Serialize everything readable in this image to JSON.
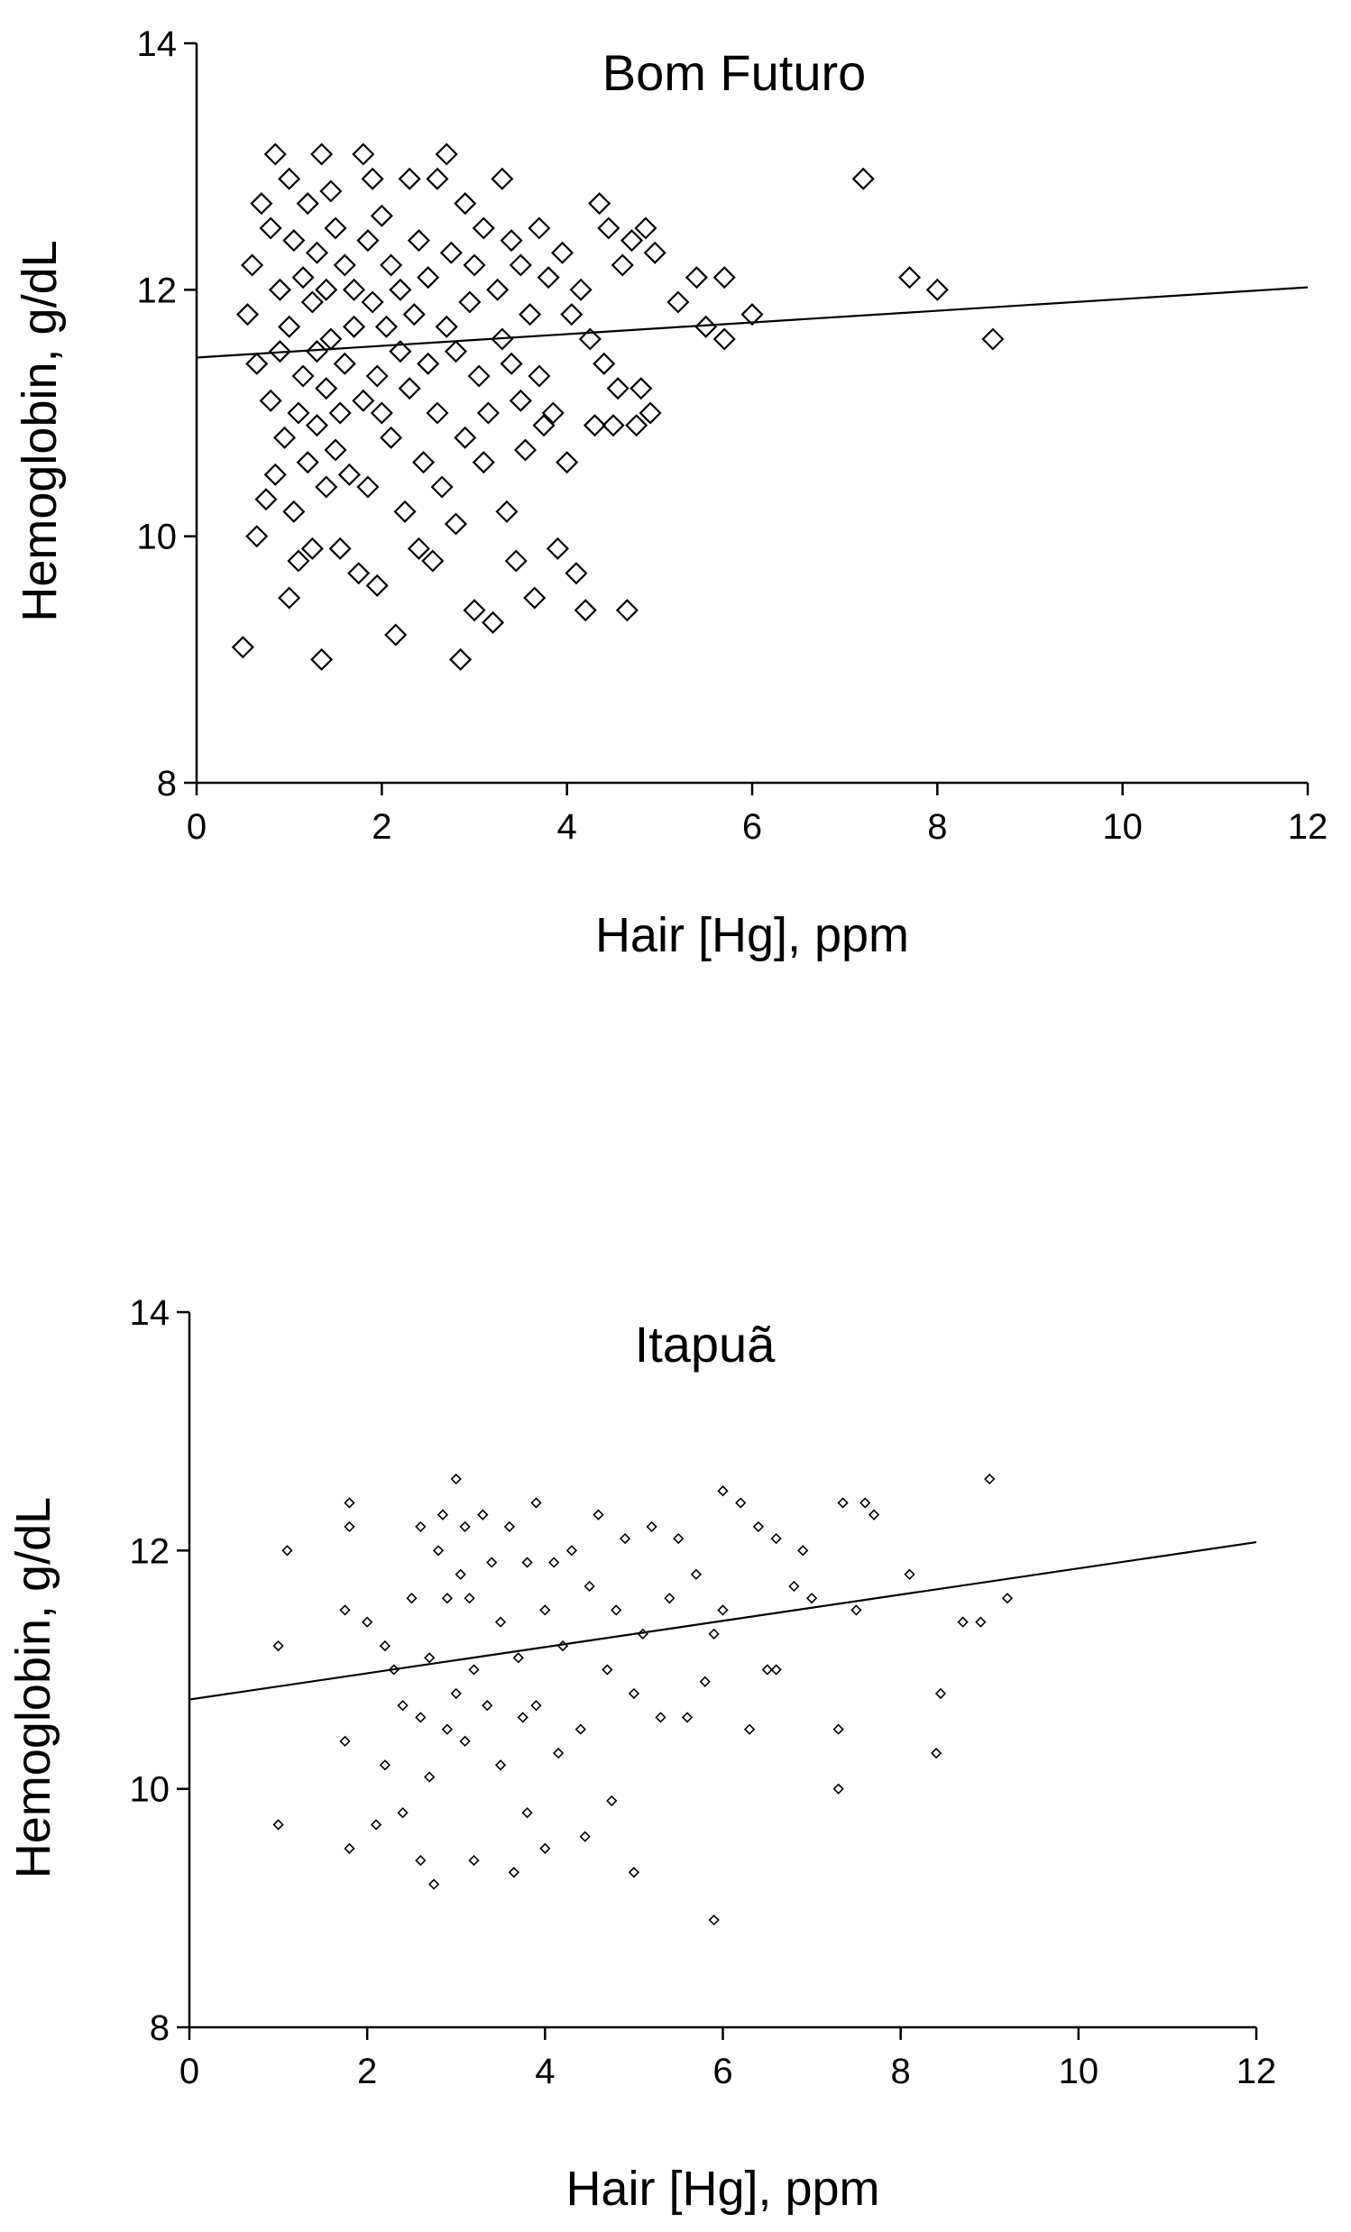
{
  "chart_data": [
    {
      "type": "scatter",
      "title": "Bom Futuro",
      "xlabel": "Hair [Hg], ppm",
      "ylabel": "Hemoglobin, g/dL",
      "xlim": [
        0,
        12
      ],
      "ylim": [
        8,
        14
      ],
      "xticks": [
        "0",
        "2",
        "4",
        "6",
        "8",
        "10",
        "12"
      ],
      "yticks": [
        "8",
        "10",
        "12",
        "14"
      ],
      "grid": false,
      "legend": "none",
      "marker": "open-diamond",
      "marker_size": "large",
      "trend_line": {
        "x": [
          0,
          12
        ],
        "y": [
          11.45,
          12.02
        ]
      },
      "points": [
        [
          0.5,
          9.1
        ],
        [
          0.55,
          11.8
        ],
        [
          0.6,
          12.2
        ],
        [
          0.65,
          11.4
        ],
        [
          0.65,
          10.0
        ],
        [
          0.7,
          12.7
        ],
        [
          0.75,
          10.3
        ],
        [
          0.8,
          11.1
        ],
        [
          0.8,
          12.5
        ],
        [
          0.85,
          13.1
        ],
        [
          0.85,
          10.5
        ],
        [
          0.9,
          11.5
        ],
        [
          0.9,
          12.0
        ],
        [
          0.95,
          10.8
        ],
        [
          1.0,
          12.9
        ],
        [
          1.0,
          11.7
        ],
        [
          1.0,
          9.5
        ],
        [
          1.05,
          10.2
        ],
        [
          1.05,
          12.4
        ],
        [
          1.1,
          11.0
        ],
        [
          1.1,
          9.8
        ],
        [
          1.15,
          12.1
        ],
        [
          1.15,
          11.3
        ],
        [
          1.2,
          10.6
        ],
        [
          1.2,
          12.7
        ],
        [
          1.25,
          11.9
        ],
        [
          1.25,
          9.9
        ],
        [
          1.3,
          11.5
        ],
        [
          1.3,
          12.3
        ],
        [
          1.3,
          10.9
        ],
        [
          1.35,
          13.1
        ],
        [
          1.35,
          9.0
        ],
        [
          1.4,
          11.2
        ],
        [
          1.4,
          12.0
        ],
        [
          1.4,
          10.4
        ],
        [
          1.45,
          12.8
        ],
        [
          1.45,
          11.6
        ],
        [
          1.5,
          10.7
        ],
        [
          1.5,
          12.5
        ],
        [
          1.55,
          11.0
        ],
        [
          1.55,
          9.9
        ],
        [
          1.6,
          12.2
        ],
        [
          1.6,
          11.4
        ],
        [
          1.65,
          10.5
        ],
        [
          1.7,
          12.0
        ],
        [
          1.7,
          11.7
        ],
        [
          1.75,
          9.7
        ],
        [
          1.8,
          13.1
        ],
        [
          1.8,
          11.1
        ],
        [
          1.85,
          12.4
        ],
        [
          1.85,
          10.4
        ],
        [
          1.9,
          11.9
        ],
        [
          1.9,
          12.9
        ],
        [
          1.95,
          11.3
        ],
        [
          1.95,
          9.6
        ],
        [
          2.0,
          12.6
        ],
        [
          2.0,
          11.0
        ],
        [
          2.05,
          11.7
        ],
        [
          2.1,
          12.2
        ],
        [
          2.1,
          10.8
        ],
        [
          2.15,
          9.2
        ],
        [
          2.2,
          11.5
        ],
        [
          2.2,
          12.0
        ],
        [
          2.25,
          10.2
        ],
        [
          2.3,
          12.9
        ],
        [
          2.3,
          11.2
        ],
        [
          2.35,
          11.8
        ],
        [
          2.4,
          9.9
        ],
        [
          2.4,
          12.4
        ],
        [
          2.45,
          10.6
        ],
        [
          2.5,
          11.4
        ],
        [
          2.5,
          12.1
        ],
        [
          2.55,
          9.8
        ],
        [
          2.6,
          11.0
        ],
        [
          2.6,
          12.9
        ],
        [
          2.65,
          10.4
        ],
        [
          2.7,
          11.7
        ],
        [
          2.7,
          13.1
        ],
        [
          2.75,
          12.3
        ],
        [
          2.8,
          10.1
        ],
        [
          2.8,
          11.5
        ],
        [
          2.85,
          9.0
        ],
        [
          2.9,
          12.7
        ],
        [
          2.9,
          10.8
        ],
        [
          2.95,
          11.9
        ],
        [
          3.0,
          9.4
        ],
        [
          3.0,
          12.2
        ],
        [
          3.05,
          11.3
        ],
        [
          3.1,
          10.6
        ],
        [
          3.1,
          12.5
        ],
        [
          3.15,
          11.0
        ],
        [
          3.2,
          9.3
        ],
        [
          3.25,
          12.0
        ],
        [
          3.3,
          11.6
        ],
        [
          3.3,
          12.9
        ],
        [
          3.35,
          10.2
        ],
        [
          3.4,
          11.4
        ],
        [
          3.4,
          12.4
        ],
        [
          3.45,
          9.8
        ],
        [
          3.5,
          11.1
        ],
        [
          3.5,
          12.2
        ],
        [
          3.55,
          10.7
        ],
        [
          3.6,
          11.8
        ],
        [
          3.65,
          9.5
        ],
        [
          3.7,
          12.5
        ],
        [
          3.7,
          11.3
        ],
        [
          3.75,
          10.9
        ],
        [
          3.8,
          12.1
        ],
        [
          3.85,
          11.0
        ],
        [
          3.9,
          9.9
        ],
        [
          3.95,
          12.3
        ],
        [
          4.0,
          10.6
        ],
        [
          4.05,
          11.8
        ],
        [
          4.1,
          9.7
        ],
        [
          4.15,
          12.0
        ],
        [
          4.2,
          9.4
        ],
        [
          4.25,
          11.6
        ],
        [
          4.3,
          10.9
        ],
        [
          4.35,
          12.7
        ],
        [
          4.4,
          11.4
        ],
        [
          4.45,
          12.5
        ],
        [
          4.5,
          10.9
        ],
        [
          4.55,
          11.2
        ],
        [
          4.6,
          12.2
        ],
        [
          4.65,
          9.4
        ],
        [
          4.7,
          12.4
        ],
        [
          4.75,
          10.9
        ],
        [
          4.8,
          11.2
        ],
        [
          4.85,
          12.5
        ],
        [
          4.9,
          11.0
        ],
        [
          4.95,
          12.3
        ],
        [
          5.2,
          11.9
        ],
        [
          5.4,
          12.1
        ],
        [
          5.5,
          11.7
        ],
        [
          5.7,
          12.1
        ],
        [
          5.7,
          11.6
        ],
        [
          6.0,
          11.8
        ],
        [
          7.2,
          12.9
        ],
        [
          7.7,
          12.1
        ],
        [
          8.0,
          12.0
        ],
        [
          8.6,
          11.6
        ]
      ]
    },
    {
      "type": "scatter",
      "title": "Itapuã",
      "xlabel": "Hair [Hg], ppm",
      "ylabel": "Hemoglobin, g/dL",
      "xlim": [
        0,
        12
      ],
      "ylim": [
        8,
        14
      ],
      "xticks": [
        "0",
        "2",
        "4",
        "6",
        "8",
        "10",
        "12"
      ],
      "yticks": [
        "8",
        "10",
        "12",
        "14"
      ],
      "grid": false,
      "legend": "none",
      "marker": "open-diamond",
      "marker_size": "small",
      "trend_line": {
        "x": [
          0,
          12
        ],
        "y": [
          10.75,
          12.07
        ]
      },
      "points": [
        [
          1.0,
          11.2
        ],
        [
          1.0,
          9.7
        ],
        [
          1.1,
          12.0
        ],
        [
          1.8,
          12.4
        ],
        [
          1.8,
          12.2
        ],
        [
          1.8,
          9.5
        ],
        [
          1.75,
          11.5
        ],
        [
          1.75,
          10.4
        ],
        [
          2.0,
          11.4
        ],
        [
          2.1,
          9.7
        ],
        [
          2.2,
          10.2
        ],
        [
          2.2,
          11.2
        ],
        [
          2.3,
          11.0
        ],
        [
          2.4,
          10.7
        ],
        [
          2.4,
          9.8
        ],
        [
          2.5,
          11.6
        ],
        [
          2.6,
          12.2
        ],
        [
          2.6,
          9.4
        ],
        [
          2.6,
          10.6
        ],
        [
          2.7,
          11.1
        ],
        [
          2.7,
          10.1
        ],
        [
          2.75,
          9.2
        ],
        [
          2.8,
          12.0
        ],
        [
          2.85,
          12.3
        ],
        [
          2.9,
          10.5
        ],
        [
          2.9,
          11.6
        ],
        [
          3.0,
          12.6
        ],
        [
          3.0,
          10.8
        ],
        [
          3.05,
          11.8
        ],
        [
          3.1,
          12.2
        ],
        [
          3.1,
          10.4
        ],
        [
          3.15,
          11.6
        ],
        [
          3.2,
          11.0
        ],
        [
          3.2,
          9.4
        ],
        [
          3.3,
          12.3
        ],
        [
          3.35,
          10.7
        ],
        [
          3.4,
          11.9
        ],
        [
          3.5,
          10.2
        ],
        [
          3.5,
          11.4
        ],
        [
          3.6,
          12.2
        ],
        [
          3.65,
          9.3
        ],
        [
          3.7,
          11.1
        ],
        [
          3.75,
          10.6
        ],
        [
          3.8,
          11.9
        ],
        [
          3.8,
          9.8
        ],
        [
          3.9,
          12.4
        ],
        [
          3.9,
          10.7
        ],
        [
          4.0,
          11.5
        ],
        [
          4.0,
          9.5
        ],
        [
          4.1,
          11.9
        ],
        [
          4.15,
          10.3
        ],
        [
          4.2,
          11.2
        ],
        [
          4.3,
          12.0
        ],
        [
          4.4,
          10.5
        ],
        [
          4.45,
          9.6
        ],
        [
          4.5,
          11.7
        ],
        [
          4.6,
          12.3
        ],
        [
          4.7,
          11.0
        ],
        [
          4.75,
          9.9
        ],
        [
          4.8,
          11.5
        ],
        [
          4.9,
          12.1
        ],
        [
          5.0,
          10.8
        ],
        [
          5.0,
          9.3
        ],
        [
          5.1,
          11.3
        ],
        [
          5.2,
          12.2
        ],
        [
          5.3,
          10.6
        ],
        [
          5.4,
          11.6
        ],
        [
          5.5,
          12.1
        ],
        [
          5.6,
          10.6
        ],
        [
          5.7,
          11.8
        ],
        [
          5.8,
          10.9
        ],
        [
          5.9,
          11.3
        ],
        [
          5.9,
          8.9
        ],
        [
          6.0,
          12.5
        ],
        [
          6.0,
          11.5
        ],
        [
          6.2,
          12.4
        ],
        [
          6.3,
          10.5
        ],
        [
          6.4,
          12.2
        ],
        [
          6.5,
          11.0
        ],
        [
          6.6,
          12.1
        ],
        [
          6.6,
          11.0
        ],
        [
          6.8,
          11.7
        ],
        [
          6.9,
          12.0
        ],
        [
          7.0,
          11.6
        ],
        [
          7.3,
          10.5
        ],
        [
          7.3,
          10.0
        ],
        [
          7.35,
          12.4
        ],
        [
          7.5,
          11.5
        ],
        [
          7.6,
          12.4
        ],
        [
          7.7,
          12.3
        ],
        [
          8.1,
          11.8
        ],
        [
          8.4,
          10.3
        ],
        [
          8.45,
          10.8
        ],
        [
          8.7,
          11.4
        ],
        [
          8.9,
          11.4
        ],
        [
          9.0,
          12.6
        ],
        [
          9.2,
          11.6
        ]
      ]
    }
  ]
}
